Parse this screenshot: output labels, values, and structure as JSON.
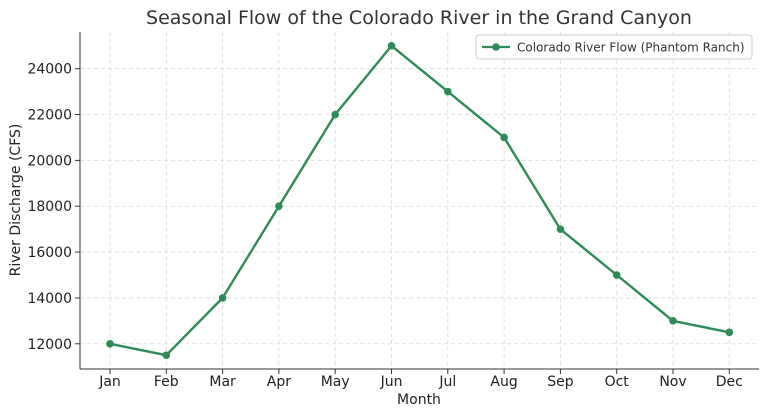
{
  "chart_data": {
    "type": "line",
    "title": "Seasonal Flow of the Colorado River in the Grand Canyon",
    "xlabel": "Month",
    "ylabel": "River Discharge (CFS)",
    "categories": [
      "Jan",
      "Feb",
      "Mar",
      "Apr",
      "May",
      "Jun",
      "Jul",
      "Aug",
      "Sep",
      "Oct",
      "Nov",
      "Dec"
    ],
    "series": [
      {
        "name": "Colorado River Flow (Phantom Ranch)",
        "values": [
          12000,
          11500,
          14000,
          18000,
          22000,
          25000,
          23000,
          21000,
          17000,
          15000,
          13000,
          12500
        ],
        "color": "#2e8b57",
        "marker": "circle"
      }
    ],
    "yticks": [
      12000,
      14000,
      16000,
      18000,
      20000,
      22000,
      24000
    ],
    "ylim": [
      10900,
      25600
    ],
    "grid": true,
    "legend_position": "top-right"
  }
}
